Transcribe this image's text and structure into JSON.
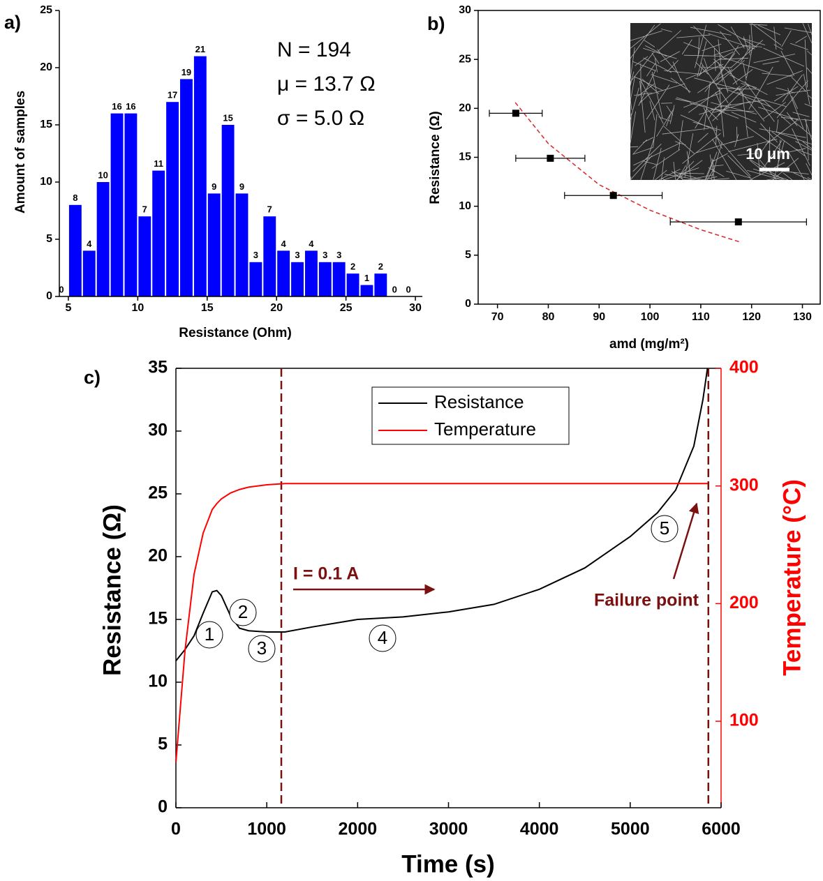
{
  "chart_data": [
    {
      "type": "histogram",
      "panel_label": "a)",
      "xlabel": "Resistance (Ohm)",
      "ylabel": "Amount of samples",
      "annotations": [
        "N = 194",
        "μ = 13.7 Ω",
        "σ = 5.0 Ω"
      ],
      "bins": [
        4,
        5,
        6,
        7,
        8,
        9,
        10,
        11,
        12,
        13,
        14,
        15,
        16,
        17,
        18,
        19,
        20,
        21,
        22,
        23,
        24,
        25,
        26,
        27,
        28,
        29,
        30
      ],
      "counts": [
        0,
        8,
        4,
        10,
        16,
        16,
        7,
        11,
        17,
        19,
        21,
        9,
        15,
        9,
        3,
        7,
        4,
        3,
        4,
        3,
        3,
        2,
        1,
        2,
        0,
        0
      ],
      "color": "#0000ff",
      "xlim": [
        4.35,
        30.5
      ],
      "xticks": [
        5,
        10,
        15,
        20,
        25,
        30
      ],
      "ylim": [
        0,
        25
      ],
      "yticks": [
        0,
        5,
        10,
        15,
        20,
        25
      ]
    },
    {
      "type": "scatter",
      "panel_label": "b)",
      "xlabel": "amd (mg/m²)",
      "ylabel": "Resistance (Ω)",
      "inset_scale_label": "10 μm",
      "x": [
        73.6,
        80.4,
        92.8,
        117.4
      ],
      "values": [
        19.5,
        14.9,
        11.1,
        8.4
      ],
      "xerr": [
        5.2,
        6.8,
        9.6,
        13.4
      ],
      "color": "#000000",
      "fit": {
        "x": [
          73.5,
          80,
          90,
          100,
          110,
          118
        ],
        "values": [
          20.6,
          16.4,
          12.2,
          9.6,
          7.6,
          6.3
        ],
        "color": "#d62728"
      },
      "xlim": [
        66.2,
        133.5
      ],
      "xticks": [
        70,
        80,
        90,
        100,
        110,
        120,
        130
      ],
      "ylim": [
        0,
        30
      ],
      "yticks": [
        0,
        5,
        10,
        15,
        20,
        25,
        30
      ]
    },
    {
      "type": "line",
      "panel_label": "c)",
      "xlabel": "Time (s)",
      "ylabel": "Resistance (Ω)",
      "y2label": "Temperature (°C)",
      "x": [
        0,
        100,
        200,
        300,
        400,
        450,
        500,
        600,
        700,
        800,
        1000,
        1200,
        1500,
        2000,
        2500,
        3000,
        3500,
        4000,
        4500,
        5000,
        5300,
        5500,
        5700,
        5800,
        5850
      ],
      "series": [
        {
          "name": "Resistance",
          "color": "#000000",
          "values": [
            11.7,
            12.6,
            13.7,
            15.5,
            17.2,
            17.3,
            16.9,
            15.3,
            14.3,
            14.1,
            14.0,
            14.0,
            14.4,
            15.0,
            15.2,
            15.6,
            16.2,
            17.4,
            19.1,
            21.6,
            23.5,
            25.3,
            28.8,
            32.5,
            35
          ]
        },
        {
          "name": "Temperature",
          "color": "#ff0000",
          "axis": "y2",
          "values": [
            65,
            160,
            225,
            260,
            280,
            285,
            289,
            294,
            297,
            299,
            301,
            302,
            302,
            302,
            302,
            302,
            302,
            302,
            302,
            302,
            302,
            302,
            302,
            302,
            302
          ]
        }
      ],
      "vlines": [
        1160,
        5860
      ],
      "legend": "upper center",
      "annotations": [
        "I = 0.1 A",
        "Failure point"
      ],
      "markers": [
        "1",
        "2",
        "3",
        "4",
        "5"
      ],
      "xlim": [
        0,
        6000
      ],
      "xticks": [
        0,
        1000,
        2000,
        3000,
        4000,
        5000,
        6000
      ],
      "ylim": [
        0,
        35
      ],
      "yticks": [
        0,
        5,
        10,
        15,
        20,
        25,
        30,
        35
      ],
      "y2lim": [
        26.5,
        400
      ],
      "y2ticks": [
        100,
        200,
        300,
        400
      ]
    }
  ]
}
